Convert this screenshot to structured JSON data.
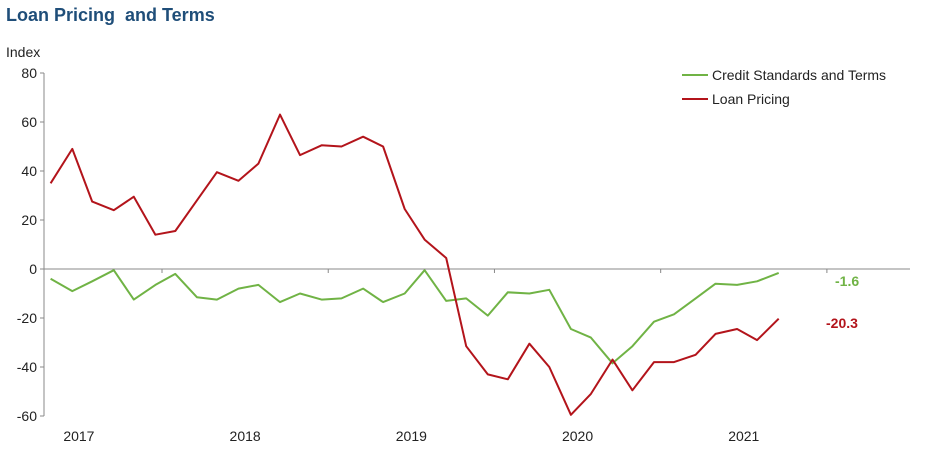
{
  "chart_data": {
    "type": "line",
    "title": "Loan Pricing  and Terms",
    "ylabel": "Index",
    "xlabel": "",
    "ylim": [
      -60,
      80
    ],
    "yticks": [
      80,
      60,
      40,
      20,
      0,
      -20,
      -40,
      -60
    ],
    "xlim": [
      2016.29,
      2021.5
    ],
    "xtick_labels": [
      "2017",
      "2018",
      "2019",
      "2020",
      "2021"
    ],
    "xtick_positions": [
      2016.5,
      2017.5,
      2018.5,
      2019.5,
      2020.5
    ],
    "legend_position": "top-right",
    "grid": false,
    "series": [
      {
        "name": "Credit Standards and Terms",
        "color": "#70b345",
        "end_label": "-1.6",
        "x": [
          2016.33,
          2016.46,
          2016.58,
          2016.71,
          2016.83,
          2016.96,
          2017.08,
          2017.21,
          2017.33,
          2017.46,
          2017.58,
          2017.71,
          2017.83,
          2017.96,
          2018.08,
          2018.21,
          2018.33,
          2018.46,
          2018.58,
          2018.71,
          2018.83,
          2018.96,
          2019.08,
          2019.21,
          2019.33,
          2019.46,
          2019.58,
          2019.71,
          2019.83,
          2019.96,
          2020.08,
          2020.21,
          2020.33,
          2020.46,
          2020.58,
          2020.71,
          2020.83
        ],
        "values": [
          -4,
          -9,
          -5,
          -0.5,
          -12.5,
          -6.5,
          -2,
          -11.5,
          -12.5,
          -8,
          -6.5,
          -13.5,
          -10,
          -12.5,
          -12,
          -8,
          -13.5,
          -10,
          -0.5,
          -13,
          -12,
          -19,
          -9.5,
          -10,
          -8.5,
          -24.5,
          -28,
          -38.5,
          -31.5,
          -21.5,
          -18.5,
          -12,
          -6,
          -6.5,
          -5,
          -1.6,
          null
        ]
      },
      {
        "name": "Loan Pricing",
        "color": "#b3141b",
        "end_label": "-20.3",
        "x": [
          2016.33,
          2016.46,
          2016.58,
          2016.71,
          2016.83,
          2016.96,
          2017.08,
          2017.21,
          2017.33,
          2017.46,
          2017.58,
          2017.71,
          2017.83,
          2017.96,
          2018.08,
          2018.21,
          2018.33,
          2018.46,
          2018.58,
          2018.71,
          2018.83,
          2018.96,
          2019.08,
          2019.21,
          2019.33,
          2019.46,
          2019.58,
          2019.71,
          2019.83,
          2019.96,
          2020.08,
          2020.21,
          2020.33,
          2020.46,
          2020.58,
          2020.71,
          2020.83
        ],
        "values": [
          35,
          49,
          27.5,
          24,
          29.5,
          14,
          15.5,
          28,
          39.5,
          36,
          43,
          63,
          46.5,
          50.5,
          50,
          54,
          50,
          24.5,
          12,
          4.5,
          -31.5,
          -43,
          -45,
          -30.5,
          -40,
          -59.5,
          -51,
          -37,
          -49.5,
          -38,
          -38,
          -35,
          -26.5,
          -24.5,
          -29,
          -20.3,
          null
        ]
      }
    ]
  }
}
